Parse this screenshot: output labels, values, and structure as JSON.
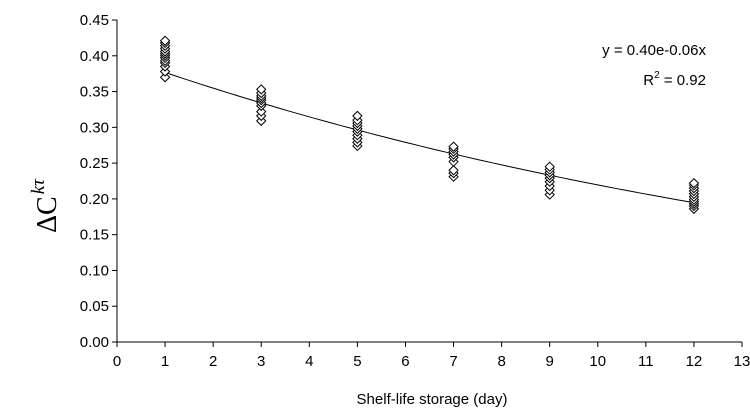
{
  "chart_data": {
    "type": "scatter",
    "title": "",
    "xlabel": "Shelf-life storage (day)",
    "ylabel": {
      "main": "ΔC",
      "superscript": "kτ"
    },
    "xlim": [
      0,
      13
    ],
    "ylim": [
      0,
      0.45
    ],
    "xticks": [
      "0",
      "1",
      "2",
      "3",
      "4",
      "5",
      "6",
      "7",
      "8",
      "9",
      "10",
      "11",
      "12",
      "13"
    ],
    "yticks": [
      "0.00",
      "0.05",
      "0.10",
      "0.15",
      "0.20",
      "0.25",
      "0.30",
      "0.35",
      "0.40",
      "0.45"
    ],
    "grid": false,
    "legend": "none",
    "marker": "hollow-diamond",
    "marker_color": "#000000",
    "series": [
      {
        "points": [
          [
            1,
            0.37
          ],
          [
            1,
            0.378
          ],
          [
            1,
            0.385
          ],
          [
            1,
            0.39
          ],
          [
            1,
            0.393
          ],
          [
            1,
            0.397
          ],
          [
            1,
            0.4
          ],
          [
            1,
            0.403
          ],
          [
            1,
            0.406
          ],
          [
            1,
            0.41
          ],
          [
            1,
            0.414
          ],
          [
            1,
            0.418
          ],
          [
            1,
            0.421
          ],
          [
            3,
            0.309
          ],
          [
            3,
            0.316
          ],
          [
            3,
            0.322
          ],
          [
            3,
            0.33
          ],
          [
            3,
            0.334
          ],
          [
            3,
            0.338
          ],
          [
            3,
            0.341
          ],
          [
            3,
            0.344
          ],
          [
            3,
            0.348
          ],
          [
            3,
            0.353
          ],
          [
            5,
            0.274
          ],
          [
            5,
            0.279
          ],
          [
            5,
            0.284
          ],
          [
            5,
            0.289
          ],
          [
            5,
            0.294
          ],
          [
            5,
            0.298
          ],
          [
            5,
            0.302
          ],
          [
            5,
            0.306
          ],
          [
            5,
            0.31
          ],
          [
            5,
            0.316
          ],
          [
            7,
            0.231
          ],
          [
            7,
            0.236
          ],
          [
            7,
            0.24
          ],
          [
            7,
            0.252
          ],
          [
            7,
            0.258
          ],
          [
            7,
            0.262
          ],
          [
            7,
            0.266
          ],
          [
            7,
            0.27
          ],
          [
            7,
            0.273
          ],
          [
            9,
            0.206
          ],
          [
            9,
            0.212
          ],
          [
            9,
            0.218
          ],
          [
            9,
            0.224
          ],
          [
            9,
            0.229
          ],
          [
            9,
            0.233
          ],
          [
            9,
            0.237
          ],
          [
            9,
            0.241
          ],
          [
            9,
            0.245
          ],
          [
            12,
            0.186
          ],
          [
            12,
            0.19
          ],
          [
            12,
            0.193
          ],
          [
            12,
            0.196
          ],
          [
            12,
            0.199
          ],
          [
            12,
            0.203
          ],
          [
            12,
            0.207
          ],
          [
            12,
            0.211
          ],
          [
            12,
            0.215
          ],
          [
            12,
            0.219
          ],
          [
            12,
            0.222
          ]
        ]
      }
    ],
    "trendline": {
      "type": "exponential",
      "a": 0.4,
      "b": -0.06,
      "x_range": [
        1,
        12
      ]
    },
    "annotations": {
      "equation": "y = 0.40e-0.06x",
      "r2_prefix": "R",
      "r2_sup": "2",
      "r2_suffix": " = 0.92"
    }
  }
}
